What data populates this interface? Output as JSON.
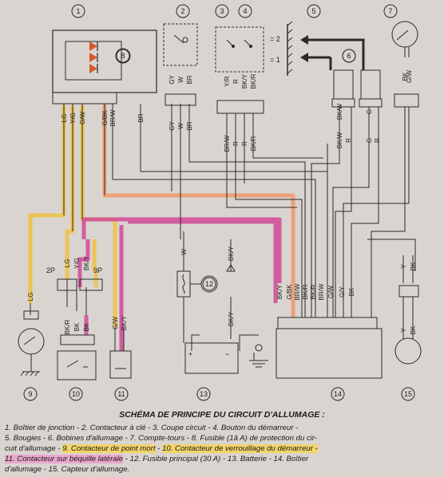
{
  "components": [
    {
      "n": "1"
    },
    {
      "n": "2"
    },
    {
      "n": "3"
    },
    {
      "n": "4"
    },
    {
      "n": "5"
    },
    {
      "n": "6"
    },
    {
      "n": "7"
    },
    {
      "n": "8"
    },
    {
      "n": "9"
    },
    {
      "n": "10"
    },
    {
      "n": "11"
    },
    {
      "n": "12"
    },
    {
      "n": "13"
    },
    {
      "n": "14"
    },
    {
      "n": "15"
    }
  ],
  "connectors": {
    "c2p": "2P",
    "c9p": "9P",
    "m2": "= 2",
    "m1": "= 1",
    "plus": "+",
    "minus": "−"
  },
  "wires": {
    "w1": [
      "LG",
      "Y/G",
      "G/W",
      "G/BK",
      "BR/W",
      "BR"
    ],
    "w2": [
      "GY",
      "W",
      "BR"
    ],
    "w3": [
      "Y/R",
      "R",
      "BK/Y",
      "BK/R"
    ],
    "w5": [
      "BK/W",
      "G"
    ],
    "w7": [
      "BK",
      "G/W"
    ],
    "w2b": [
      "GY",
      "W",
      "BR"
    ],
    "w3b": [
      "BR/W",
      "R",
      "R",
      "BK/R"
    ],
    "w5b": [
      "BK/W",
      "R",
      "G",
      "R"
    ],
    "mid": [
      "LG",
      "Y/G",
      "BK/Y"
    ],
    "lo9": [
      "LG"
    ],
    "lo10": [
      "BK/R",
      "BK",
      "BK"
    ],
    "lo11": [
      "G/W",
      "BK/Y"
    ],
    "w12": [
      "W"
    ],
    "w13": [
      "BK/Y",
      "BK/Y"
    ],
    "w14": [
      "BK/Y",
      "G/BK",
      "BR/W",
      "BK/R",
      "BK/R",
      "BR/W",
      "G/W",
      "G/Y",
      "BK"
    ],
    "w15": [
      "Y",
      "BK",
      "Y",
      "BK"
    ]
  },
  "caption": {
    "title": "SCHÉMA DE PRINCIPE DU CIRCUIT D'ALLUMAGE :",
    "l1": "1. Boîtier de jonction - 2. Contacteur à clé - 3. Coupe circuit - 4. Bouton du démarreur -",
    "l2": "5. Bougies - 6. Bobines d'allumage - 7. Compte-tours - 8. Fusible (1â A) de protection du cir-",
    "l3a": "cuit d'allumage - ",
    "l3b": "9. Contacteur de point mort",
    "l3c": " - ",
    "l3d": "10. Contacteur de verrouillage du démarreur -",
    "l4a": "11. Contacteur sur béquille latérale",
    "l4b": " - 12. Fusible principal (30 A) - 13. Batterie - 14. Boîtier",
    "l5": "d'allumage - 15. Capteur d'allumage."
  },
  "colors": {
    "yellow": "#f0c24a",
    "pink": "#d4489a",
    "orange": "#ee9a6e",
    "wire": "#2a2a2a",
    "paper": "#d9d4cf"
  }
}
